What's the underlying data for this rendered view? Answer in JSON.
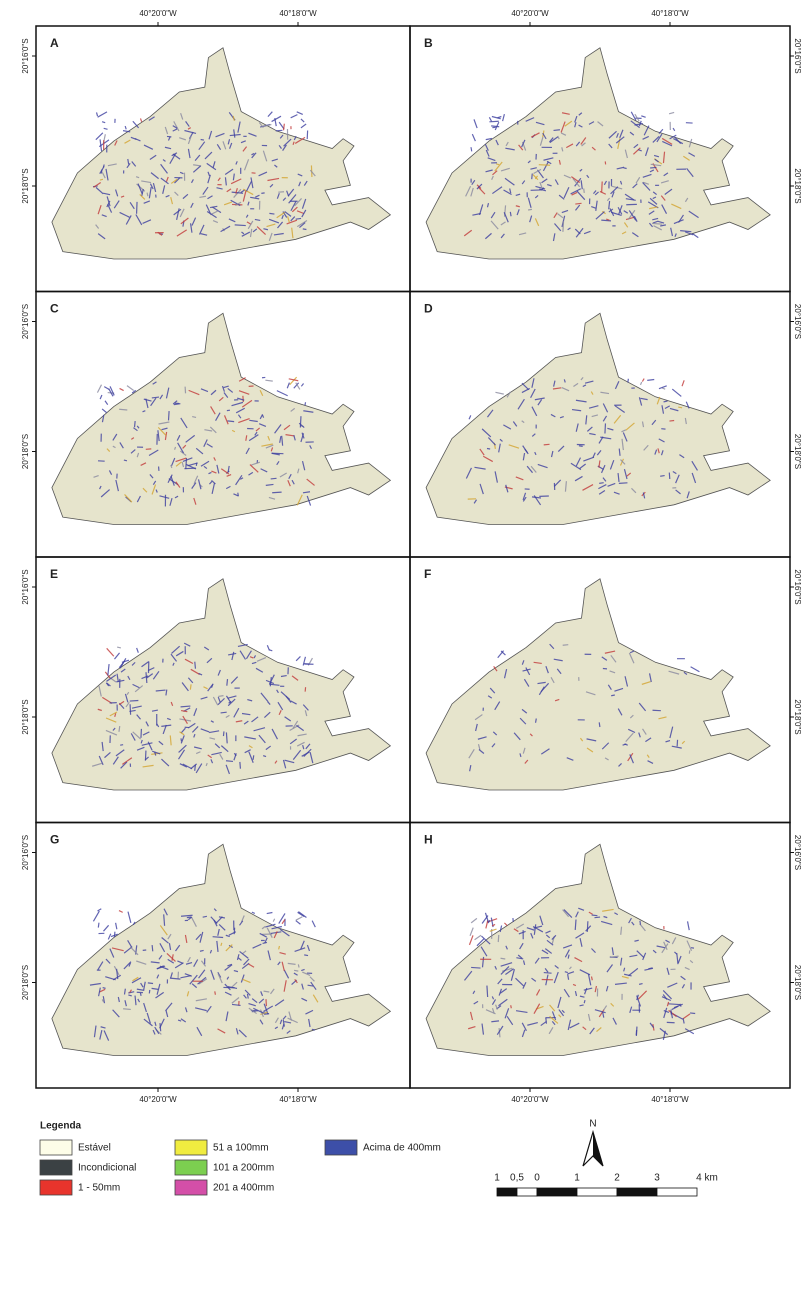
{
  "map": {
    "panels": [
      "A",
      "B",
      "C",
      "D",
      "E",
      "F",
      "G",
      "H"
    ],
    "lon_labels_top": [
      [
        "40°20'0\"W",
        "40°18'0\"W"
      ],
      [
        "40°20'0\"W",
        "40°18'0\"W"
      ]
    ],
    "lon_labels_bottom": [
      [
        "40°20'0\"W",
        "40°18'0\"W"
      ],
      [
        "40°20'0\"W",
        "40°18'0\"W"
      ]
    ],
    "lat_labels_left": [
      [
        "20°16'0\"S",
        "20°18'0\"S"
      ],
      [
        "20°16'0\"S",
        "20°18'0\"S"
      ],
      [
        "20°16'0\"S",
        "20°18'0\"S"
      ],
      [
        "20°16'0\"S",
        "20°18'0\"S"
      ]
    ],
    "lat_labels_right": [
      [
        "20°16'0\"S",
        "20°18'0\"S"
      ],
      [
        "20°16'0\"S",
        "20°18'0\"S"
      ],
      [
        "20°16'0\"S",
        "20°18'0\"S"
      ],
      [
        "20°16'0\"S",
        "20°18'0\"S"
      ]
    ],
    "legend": {
      "title": "Legenda",
      "items": [
        {
          "label": "Estável",
          "color": "#fdfde8"
        },
        {
          "label": "Incondicional",
          "color": "#3b4144"
        },
        {
          "label": "1 - 50mm",
          "color": "#e8342c"
        },
        {
          "label": "51 a 100mm",
          "color": "#f0ec40"
        },
        {
          "label": "101 a 200mm",
          "color": "#7ccf50"
        },
        {
          "label": "201 a 400mm",
          "color": "#d44fa8"
        },
        {
          "label": "Acima de 400mm",
          "color": "#3d4fa8"
        }
      ]
    },
    "north": "N",
    "scale_labels": [
      "1",
      "0,5",
      "0",
      "1",
      "2",
      "3",
      "4 km"
    ]
  }
}
